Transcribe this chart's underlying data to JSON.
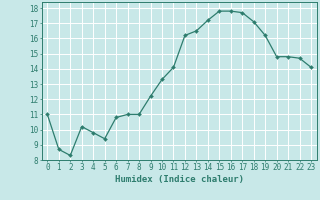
{
  "x": [
    0,
    1,
    2,
    3,
    4,
    5,
    6,
    7,
    8,
    9,
    10,
    11,
    12,
    13,
    14,
    15,
    16,
    17,
    18,
    19,
    20,
    21,
    22,
    23
  ],
  "y": [
    11.0,
    8.7,
    8.3,
    10.2,
    9.8,
    9.4,
    10.8,
    11.0,
    11.0,
    12.2,
    13.3,
    14.1,
    16.2,
    16.5,
    17.2,
    17.8,
    17.8,
    17.7,
    17.1,
    16.2,
    14.8,
    14.8,
    14.7,
    14.1
  ],
  "xlabel": "Humidex (Indice chaleur)",
  "xlim": [
    -0.5,
    23.5
  ],
  "ylim": [
    8,
    18.4
  ],
  "yticks": [
    8,
    9,
    10,
    11,
    12,
    13,
    14,
    15,
    16,
    17,
    18
  ],
  "xticks": [
    0,
    1,
    2,
    3,
    4,
    5,
    6,
    7,
    8,
    9,
    10,
    11,
    12,
    13,
    14,
    15,
    16,
    17,
    18,
    19,
    20,
    21,
    22,
    23
  ],
  "line_color": "#2e7d6e",
  "marker_color": "#2e7d6e",
  "bg_color": "#c8e8e8",
  "grid_color": "#ffffff",
  "xlabel_fontsize": 6.5,
  "tick_fontsize": 5.5,
  "fig_width": 3.2,
  "fig_height": 2.0,
  "dpi": 100
}
